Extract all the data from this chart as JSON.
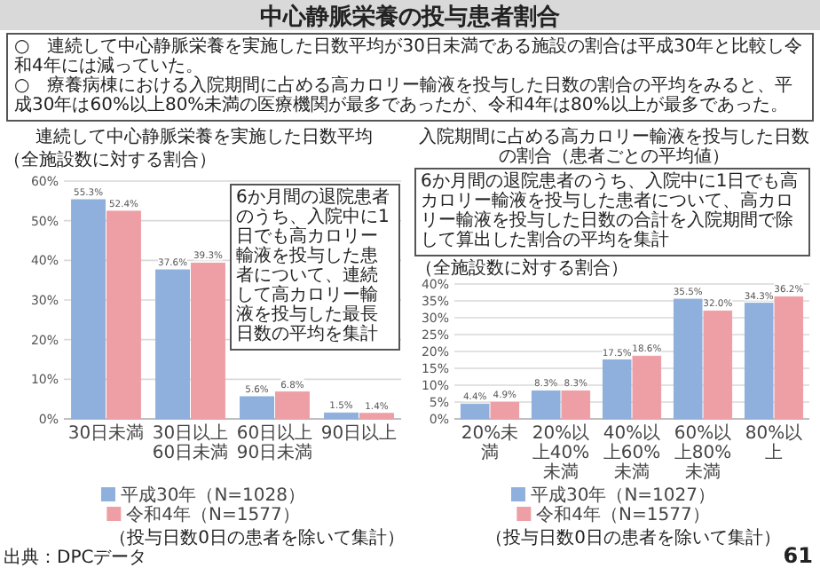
{
  "chart_data": [
    {
      "type": "other",
      "title": "中心静脈栄養の投与患者割合",
      "annotations": [
        "○　連続して中心静脈栄養を実施した日数平均が30日未満である施設の割合は平成30年と比較し令和4年には減っていた。",
        "○　療養病棟における入院期間に占める高カロリー輸液を投与した日数の割合の平均をみると、平成30年は60%以上80%未満の医療機関が最多であったが、令和4年は80%以上が最多であった。",
        "61"
      ]
    },
    {
      "type": "bar",
      "title": "連続して中心静脈栄養を実施した日数平均",
      "ylabel": "（全施設数に対する割合）",
      "categories": [
        "30日未満",
        "30日以上60日未満",
        "60日以上90日未満",
        "90日以上"
      ],
      "series": [
        {
          "name": "平成30年（N=1028）",
          "color": "#8fb0dc",
          "values": [
            55.3,
            37.6,
            5.6,
            1.5
          ],
          "value_labels": [
            "55.3%",
            "37.6%",
            "5.6%",
            "1.5%"
          ]
        },
        {
          "name": "令和4年（N=1577）",
          "color": "#ee9fa6",
          "values": [
            52.4,
            39.3,
            6.8,
            1.4
          ],
          "value_labels": [
            "52.4%",
            "39.3%",
            "6.8%",
            "1.4%"
          ]
        }
      ],
      "ylim": [
        0,
        60
      ],
      "yticks": [
        {
          "value": 0,
          "label": "0%"
        },
        {
          "value": 10,
          "label": "10%"
        },
        {
          "value": 20,
          "label": "20%"
        },
        {
          "value": 30,
          "label": "30%"
        },
        {
          "value": 40,
          "label": "40%"
        },
        {
          "value": 50,
          "label": "50%"
        },
        {
          "value": 60,
          "label": "60%"
        }
      ],
      "grid": "y",
      "legend": "bottom",
      "annotations": [
        "6か月間の退院患者のうち、入院中に1日でも高カロリー輸液を投与した患者について、連続して高カロリー輸液を投与した最長日数の平均を集計",
        "（投与日数0日の患者を除いて集計）",
        "出典：DPCデータ"
      ]
    },
    {
      "type": "bar",
      "title": "入院期間に占める高カロリー輸液を投与した日数の割合（患者ごとの平均値）",
      "ylabel": "（全施設数に対する割合）",
      "categories": [
        "20%未満",
        "20%以上40%未満",
        "40%以上60%未満",
        "60%以上80%未満",
        "80%以上"
      ],
      "series": [
        {
          "name": "平成30年（N=1027）",
          "color": "#8fb0dc",
          "values": [
            4.4,
            8.3,
            17.5,
            35.5,
            34.3
          ],
          "value_labels": [
            "4.4%",
            "8.3%",
            "17.5%",
            "35.5%",
            "34.3%"
          ]
        },
        {
          "name": "令和4年（N=1577）",
          "color": "#ee9fa6",
          "values": [
            4.9,
            8.3,
            18.6,
            32.0,
            36.2
          ],
          "value_labels": [
            "4.9%",
            "8.3%",
            "18.6%",
            "32.0%",
            "36.2%"
          ]
        }
      ],
      "ylim": [
        0,
        40
      ],
      "yticks": [
        {
          "value": 0,
          "label": "0%"
        },
        {
          "value": 5,
          "label": "5%"
        },
        {
          "value": 10,
          "label": "10%"
        },
        {
          "value": 15,
          "label": "15%"
        },
        {
          "value": 20,
          "label": "20%"
        },
        {
          "value": 25,
          "label": "25%"
        },
        {
          "value": 30,
          "label": "30%"
        },
        {
          "value": 35,
          "label": "35%"
        },
        {
          "value": 40,
          "label": "40%"
        }
      ],
      "grid": "y",
      "legend": "bottom",
      "annotations": [
        "6か月間の退院患者のうち、入院中に1日でも高カロリー輸液を投与した患者について、高カロリー輸液を投与した日数の合計を入院期間で除して算出した割合の平均を集計",
        "（投与日数0日の患者を除いて集計）"
      ]
    }
  ]
}
